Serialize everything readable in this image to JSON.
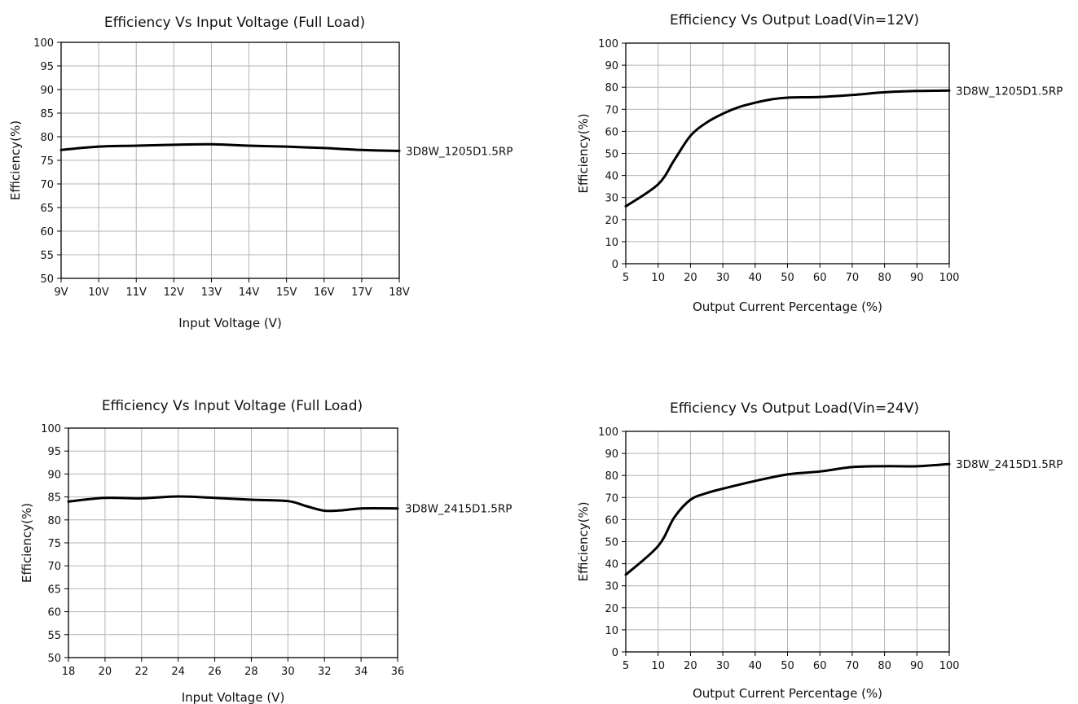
{
  "chart_data": [
    {
      "type": "line",
      "title": "Efficiency Vs Input Voltage (Full Load)",
      "xlabel": "Input Voltage (V)",
      "ylabel": "Efficiency(%)",
      "x_tick_labels": [
        "9V",
        "10V",
        "11V",
        "12V",
        "13V",
        "14V",
        "15V",
        "16V",
        "17V",
        "18V"
      ],
      "xlim": [
        9,
        18
      ],
      "ylim": [
        50,
        100
      ],
      "y_ticks": [
        50,
        55,
        60,
        65,
        70,
        75,
        80,
        85,
        90,
        95,
        100
      ],
      "grid": true,
      "series": [
        {
          "name": "3D8W_1205D1.5RP",
          "x": [
            9,
            10,
            11,
            12,
            13,
            14,
            15,
            16,
            17,
            18
          ],
          "y": [
            77.2,
            77.9,
            78.1,
            78.3,
            78.4,
            78.1,
            77.9,
            77.6,
            77.2,
            77.0
          ]
        }
      ]
    },
    {
      "type": "line",
      "title": "Efficiency Vs Output Load(Vin=12V)",
      "xlabel": "Output Current Percentage (%)",
      "ylabel": "Efficiency(%)",
      "x_tick_labels": [
        "5",
        "10",
        "20",
        "30",
        "40",
        "50",
        "60",
        "70",
        "80",
        "90",
        "100"
      ],
      "xlim": [
        5,
        100
      ],
      "ylim": [
        0,
        100
      ],
      "y_ticks": [
        0,
        10,
        20,
        30,
        40,
        50,
        60,
        70,
        80,
        90,
        100
      ],
      "grid": true,
      "series": [
        {
          "name": "3D8W_1205D1.5RP",
          "x": [
            5,
            10,
            15,
            20,
            25,
            30,
            35,
            40,
            45,
            50,
            60,
            70,
            80,
            90,
            100
          ],
          "y": [
            26,
            36,
            47,
            58,
            64,
            68,
            71,
            73,
            74.5,
            75.3,
            75.6,
            76.5,
            77.7,
            78.3,
            78.5
          ]
        }
      ]
    },
    {
      "type": "line",
      "title": "Efficiency Vs Input Voltage (Full Load)",
      "xlabel": "Input Voltage (V)",
      "ylabel": "Efficiency(%)",
      "x_tick_labels": [
        "18",
        "20",
        "22",
        "24",
        "26",
        "28",
        "30",
        "32",
        "34",
        "36"
      ],
      "xlim": [
        18,
        36
      ],
      "ylim": [
        50,
        100
      ],
      "y_ticks": [
        50,
        55,
        60,
        65,
        70,
        75,
        80,
        85,
        90,
        95,
        100
      ],
      "grid": true,
      "series": [
        {
          "name": "3D8W_2415D1.5RP",
          "x": [
            18,
            20,
            22,
            24,
            26,
            28,
            30,
            31,
            32,
            33,
            34,
            36
          ],
          "y": [
            84.0,
            84.8,
            84.7,
            85.1,
            84.8,
            84.4,
            84.1,
            83.0,
            82.0,
            82.1,
            82.5,
            82.5
          ]
        }
      ]
    },
    {
      "type": "line",
      "title": "Efficiency Vs Output Load(Vin=24V)",
      "xlabel": "Output Current Percentage (%)",
      "ylabel": "Efficiency(%)",
      "x_tick_labels": [
        "5",
        "10",
        "20",
        "30",
        "40",
        "50",
        "60",
        "70",
        "80",
        "90",
        "100"
      ],
      "xlim": [
        5,
        100
      ],
      "ylim": [
        0,
        100
      ],
      "y_ticks": [
        0,
        10,
        20,
        30,
        40,
        50,
        60,
        70,
        80,
        90,
        100
      ],
      "grid": true,
      "series": [
        {
          "name": "3D8W_2415D1.5RP",
          "x": [
            5,
            10,
            15,
            20,
            25,
            30,
            40,
            50,
            60,
            70,
            80,
            90,
            100
          ],
          "y": [
            35,
            48,
            61,
            69,
            72,
            74,
            77.5,
            80.5,
            81.8,
            83.8,
            84.2,
            84.2,
            85.2
          ]
        }
      ]
    }
  ]
}
